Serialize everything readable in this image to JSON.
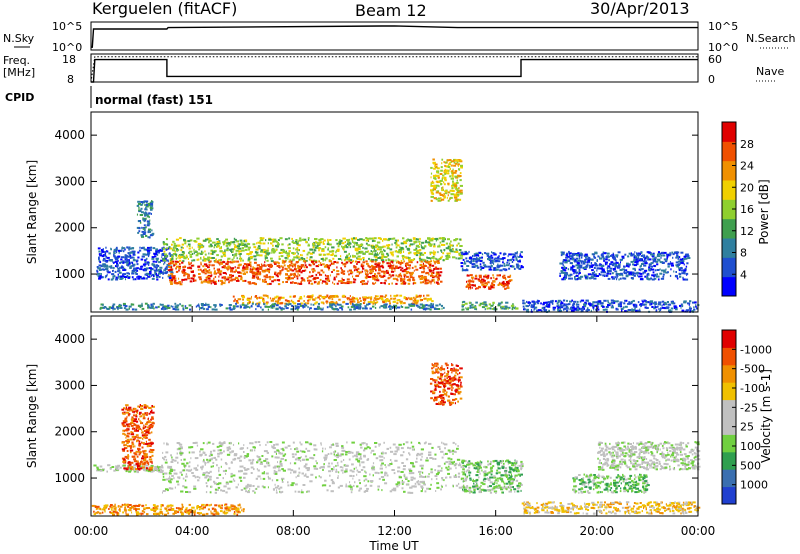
{
  "header": {
    "station": "Kerguelen (fitACF)",
    "beam": "Beam 12",
    "date": "30/Apr/2013"
  },
  "chart_data": [
    {
      "type": "line",
      "panel": "noise-search",
      "left_label": "N.Sky",
      "right_label": "N.Search",
      "left_ticks": [
        "10^5",
        "10^0"
      ],
      "right_ticks": [
        "10^5",
        "10^0"
      ],
      "series": [
        {
          "name": "N.Sky",
          "style": "solid",
          "x": [
            0,
            0.05,
            0.1,
            3.0,
            3.05,
            12.0,
            14.5,
            24.0
          ],
          "y": [
            0.1,
            0.1,
            0.75,
            0.75,
            0.8,
            0.86,
            0.8,
            0.8
          ]
        }
      ]
    },
    {
      "type": "line",
      "panel": "frequency-nave",
      "left_label": "Freq. [MHz]",
      "right_label": "Nave",
      "left_ticks": [
        "18",
        "8"
      ],
      "right_ticks": [
        "60",
        "0"
      ],
      "series": [
        {
          "name": "Freq",
          "style": "solid",
          "x": [
            0,
            0.1,
            0.15,
            3.0,
            3.0,
            17.0,
            17.0,
            24.0
          ],
          "y": [
            0.0,
            0.0,
            0.8,
            0.8,
            0.2,
            0.2,
            0.8,
            0.8
          ]
        },
        {
          "name": "Nave",
          "style": "dotted",
          "x": [
            0,
            0.15,
            24.0
          ],
          "y": [
            0.0,
            0.9,
            0.9
          ]
        }
      ]
    },
    {
      "type": "table",
      "panel": "cpid",
      "label": "CPID",
      "value": "normal (fast) 151"
    },
    {
      "type": "heatmap",
      "panel": "power",
      "ylabel": "Slant Range [km]",
      "xlim": [
        0,
        24
      ],
      "ylim": [
        180,
        4500
      ],
      "yticks": [
        1000,
        2000,
        3000,
        4000
      ],
      "colorbar": {
        "label": "Power [dB]",
        "ticks": [
          "4",
          "8",
          "12",
          "16",
          "20",
          "24",
          "28"
        ],
        "colors": [
          "#0000ff",
          "#1f4fcf",
          "#2f7f9f",
          "#3f9f4f",
          "#8fcf2f",
          "#f0d000",
          "#f09000",
          "#f05000",
          "#e00000"
        ]
      },
      "regions": [
        {
          "x0": 0.2,
          "x1": 3.2,
          "y0": 900,
          "y1": 1600,
          "level": 1
        },
        {
          "x0": 1.8,
          "x1": 2.4,
          "y0": 1800,
          "y1": 2600,
          "level": 2
        },
        {
          "x0": 2.8,
          "x1": 14.6,
          "y0": 1300,
          "y1": 1800,
          "level": 4
        },
        {
          "x0": 3.0,
          "x1": 13.8,
          "y0": 800,
          "y1": 1300,
          "level": 7
        },
        {
          "x0": 5.6,
          "x1": 13.5,
          "y0": 380,
          "y1": 560,
          "level": 6
        },
        {
          "x0": 0.3,
          "x1": 14.0,
          "y0": 250,
          "y1": 380,
          "level": 2
        },
        {
          "x0": 14.6,
          "x1": 17.0,
          "y0": 1100,
          "y1": 1500,
          "level": 1
        },
        {
          "x0": 14.8,
          "x1": 16.6,
          "y0": 700,
          "y1": 1000,
          "level": 7
        },
        {
          "x0": 14.6,
          "x1": 16.8,
          "y0": 250,
          "y1": 420,
          "level": 3
        },
        {
          "x0": 13.4,
          "x1": 14.6,
          "y0": 2600,
          "y1": 3500,
          "level": 5
        },
        {
          "x0": 18.5,
          "x1": 23.6,
          "y0": 900,
          "y1": 1500,
          "level": 1
        },
        {
          "x0": 17.0,
          "x1": 24.0,
          "y0": 200,
          "y1": 450,
          "level": 1
        }
      ]
    },
    {
      "type": "heatmap",
      "panel": "velocity",
      "ylabel": "Slant Range [km]",
      "xlabel": "Time UT",
      "xlim": [
        0,
        24
      ],
      "ylim": [
        180,
        4500
      ],
      "yticks": [
        1000,
        2000,
        3000,
        4000
      ],
      "xticks": [
        "00:00",
        "04:00",
        "08:00",
        "12:00",
        "16:00",
        "20:00",
        "00:00"
      ],
      "colorbar": {
        "label": "Velocity [m s-1]",
        "ticks": [
          "1000",
          "500",
          "100",
          "25",
          "-25",
          "-100",
          "-500",
          "-1000"
        ],
        "colors": [
          "#2040d0",
          "#3a6fb0",
          "#2f9f4f",
          "#70d040",
          "#c0c0c0",
          "#c0c0c0",
          "#f0c000",
          "#f09000",
          "#f05000",
          "#e00000"
        ]
      },
      "regions": [
        {
          "x0": 0.0,
          "x1": 3.2,
          "y0": 1150,
          "y1": 1300,
          "level": 4
        },
        {
          "x0": 1.2,
          "x1": 2.4,
          "y0": 1200,
          "y1": 2600,
          "level": 8
        },
        {
          "x0": 2.8,
          "x1": 14.6,
          "y0": 700,
          "y1": 1800,
          "level": 4
        },
        {
          "x0": 14.6,
          "x1": 17.0,
          "y0": 700,
          "y1": 1400,
          "level": 3
        },
        {
          "x0": 0.0,
          "x1": 6.0,
          "y0": 230,
          "y1": 450,
          "level": 7
        },
        {
          "x0": 13.4,
          "x1": 14.6,
          "y0": 2600,
          "y1": 3500,
          "level": 8
        },
        {
          "x0": 19.0,
          "x1": 22.0,
          "y0": 700,
          "y1": 1100,
          "level": 3
        },
        {
          "x0": 20.0,
          "x1": 24.0,
          "y0": 1200,
          "y1": 1800,
          "level": 4
        },
        {
          "x0": 17.0,
          "x1": 24.0,
          "y0": 250,
          "y1": 500,
          "level": 6
        }
      ]
    }
  ]
}
